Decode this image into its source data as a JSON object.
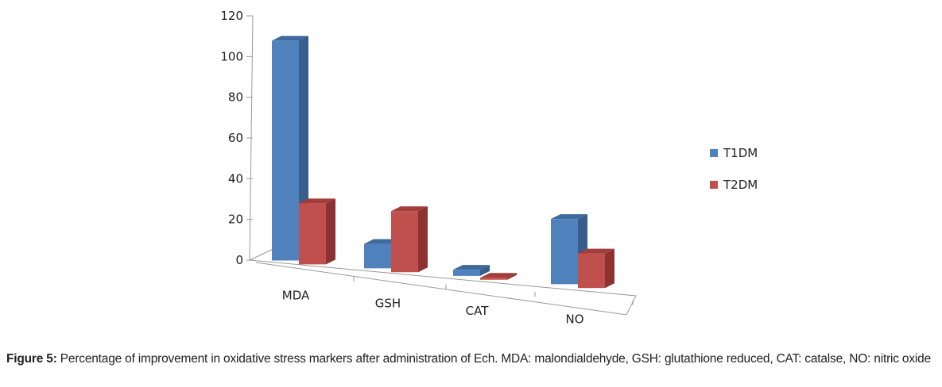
{
  "chart_data": {
    "type": "bar",
    "style": "3d-clustered",
    "categories": [
      "MDA",
      "GSH",
      "CAT",
      "NO"
    ],
    "series": [
      {
        "name": "T1DM",
        "values": [
          108,
          12,
          3,
          32
        ],
        "color": "#4f81bd",
        "side": "#385d8a",
        "top": "#3e6a9e"
      },
      {
        "name": "T2DM",
        "values": [
          30,
          30,
          1,
          17
        ],
        "color": "#c0504d",
        "side": "#8c3331",
        "top": "#a33d3a"
      }
    ],
    "yticks": [
      "0",
      "20",
      "40",
      "60",
      "80",
      "100",
      "120"
    ],
    "ylim": [
      0,
      120
    ],
    "xlabel": "",
    "ylabel": "",
    "title": "",
    "legend": "right"
  },
  "caption": {
    "label": "Figure 5:",
    "text": " Percentage of improvement in oxidative stress markers after administration of Ech. MDA: malondialdehyde, GSH: glutathione reduced, CAT: catalse, NO: nitric oxide"
  }
}
